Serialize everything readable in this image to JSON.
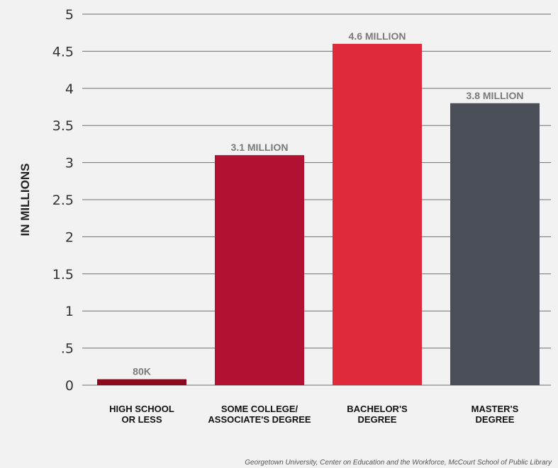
{
  "chart_data": {
    "type": "bar",
    "categories": [
      [
        "HIGH SCHOOL",
        "OR LESS"
      ],
      [
        "SOME COLLEGE/",
        "ASSOCIATE'S DEGREE"
      ],
      [
        "BACHELOR'S",
        "DEGREE"
      ],
      [
        "MASTER'S",
        "DEGREE"
      ]
    ],
    "values": [
      0.08,
      3.1,
      4.6,
      3.8
    ],
    "data_labels": [
      "80K",
      "3.1 MILLION",
      "4.6 MILLION",
      "3.8 MILLION"
    ],
    "bar_colors": [
      "#8b0a1e",
      "#b31132",
      "#e02a3b",
      "#4a4e56"
    ],
    "ylabel": "IN MILLIONS",
    "ylim": [
      0,
      5
    ],
    "yticks": [
      0,
      0.5,
      1,
      1.5,
      2,
      2.5,
      3,
      3.5,
      4,
      4.5,
      5
    ],
    "ytick_labels": [
      "0",
      ".5",
      "1",
      "1.5",
      "2",
      "2.5",
      "3",
      "3.5",
      "4",
      "4.5",
      "5"
    ],
    "grid": true,
    "source": "Georgetown University, Center on Education and the Workforce, McCourt School of Public Library"
  }
}
